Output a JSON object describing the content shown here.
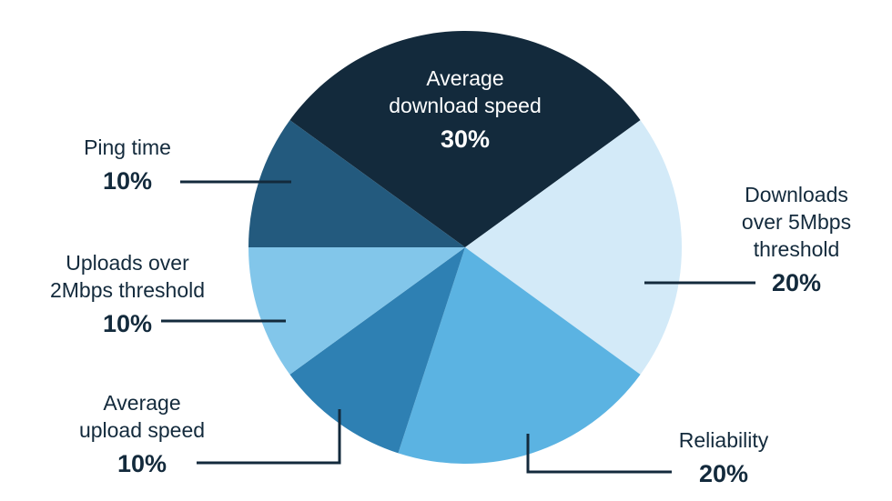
{
  "chart_data": {
    "type": "pie",
    "slices": [
      {
        "label": [
          "Average",
          "download speed"
        ],
        "value": 30,
        "value_label": "30%",
        "color": "#132a3c"
      },
      {
        "label": [
          "Downloads",
          "over 5Mbps",
          "threshold"
        ],
        "value": 20,
        "value_label": "20%",
        "color": "#d3eaf8"
      },
      {
        "label": [
          "Reliability"
        ],
        "value": 20,
        "value_label": "20%",
        "color": "#5bb3e2"
      },
      {
        "label": [
          "Average",
          "upload speed"
        ],
        "value": 10,
        "value_label": "10%",
        "color": "#2e80b3"
      },
      {
        "label": [
          "Uploads over",
          "2Mbps threshold"
        ],
        "value": 10,
        "value_label": "10%",
        "color": "#82c6ea"
      },
      {
        "label": [
          "Ping time"
        ],
        "value": 10,
        "value_label": "10%",
        "color": "#235a7e"
      }
    ],
    "legend": "none"
  }
}
